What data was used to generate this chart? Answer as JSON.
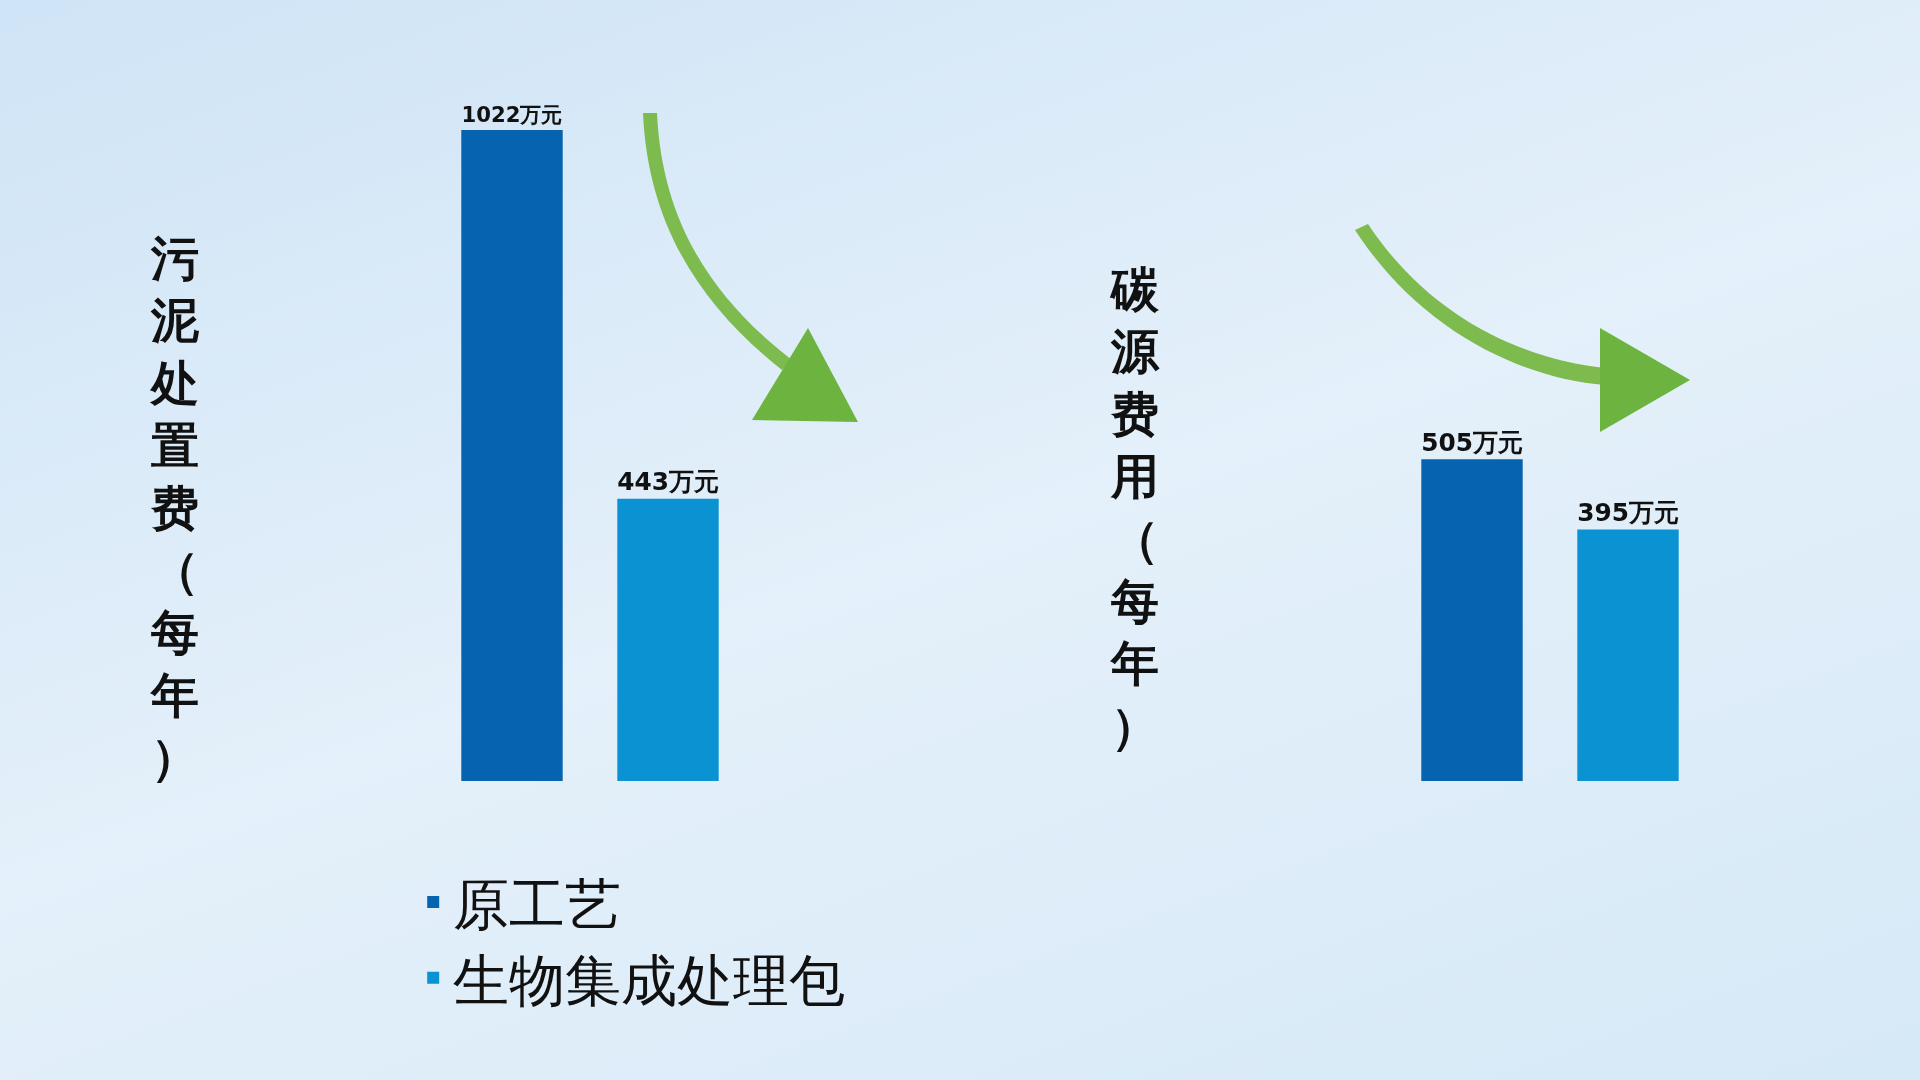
{
  "chart_data": [
    {
      "type": "bar",
      "ylabel": "污泥处置费（每年）",
      "categories": [
        null
      ],
      "legend": "bottom",
      "series": [
        {
          "name": "原工艺",
          "color": "#0563b0",
          "values": [
            1022
          ],
          "value_labels": [
            "1022万元"
          ]
        },
        {
          "name": "生物集成处理包",
          "color": "#0a92d2",
          "values": [
            443
          ],
          "value_labels": [
            "443万元"
          ]
        }
      ]
    },
    {
      "type": "bar",
      "ylabel": "碳源费用（每年）",
      "categories": [
        null
      ],
      "series": [
        {
          "color": "#0563b0",
          "values": [
            505
          ],
          "value_labels": [
            "505万元"
          ]
        },
        {
          "color": "#0a92d2",
          "values": [
            395
          ],
          "value_labels": [
            "395万元"
          ]
        }
      ]
    }
  ]
}
